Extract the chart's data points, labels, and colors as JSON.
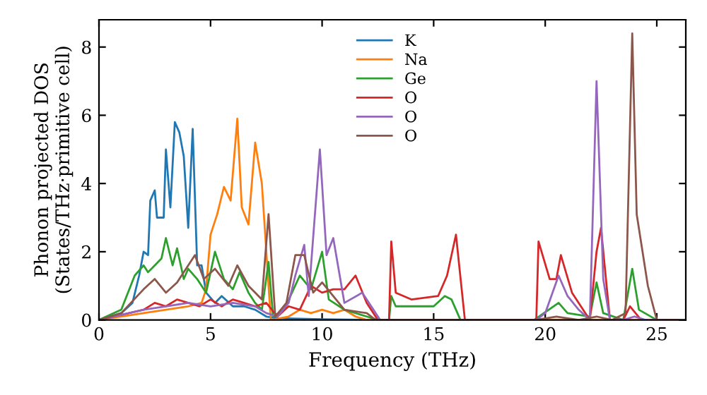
{
  "chart_data": {
    "type": "line",
    "xlabel": "Frequency (THz)",
    "ylabel": "Phonon projected DOS\n(States/THz·primitive cell)",
    "xlim": [
      0,
      26.3
    ],
    "ylim": [
      0,
      8.8
    ],
    "xticks": [
      0,
      5,
      10,
      15,
      20,
      25
    ],
    "yticks": [
      0,
      2,
      4,
      6,
      8
    ],
    "legend": "top",
    "grid": false,
    "marker": "none",
    "line_style": "solid",
    "series": [
      {
        "name": "K",
        "color": "#1f77b4",
        "x": [
          0,
          1,
          1.5,
          1.8,
          2.0,
          2.2,
          2.3,
          2.5,
          2.6,
          2.9,
          3.0,
          3.2,
          3.4,
          3.6,
          3.8,
          4.0,
          4.2,
          4.4,
          4.6,
          4.8,
          5.2,
          5.5,
          6.0,
          6.5,
          7.0,
          7.5,
          8,
          10,
          12,
          26
        ],
        "values": [
          0,
          0.2,
          0.5,
          1.3,
          2.0,
          1.9,
          3.5,
          3.8,
          3.0,
          3.0,
          5.0,
          3.3,
          5.8,
          5.5,
          4.8,
          2.7,
          5.6,
          1.6,
          1.6,
          0.8,
          0.5,
          0.7,
          0.4,
          0.4,
          0.3,
          0.1,
          0.05,
          0.02,
          0,
          0
        ]
      },
      {
        "name": "Na",
        "color": "#ff7f0e",
        "x": [
          0,
          2,
          4,
          4.6,
          4.8,
          5.0,
          5.3,
          5.6,
          5.9,
          6.2,
          6.4,
          6.7,
          7.0,
          7.3,
          7.5,
          7.7,
          8.5,
          9,
          9.5,
          10,
          10.5,
          11,
          11.5,
          12,
          26
        ],
        "values": [
          0,
          0.2,
          0.4,
          0.5,
          0.9,
          2.5,
          3.1,
          3.9,
          3.5,
          5.9,
          3.3,
          2.8,
          5.2,
          4.0,
          2.0,
          0,
          0.1,
          0.3,
          0.2,
          0.3,
          0.2,
          0.3,
          0.1,
          0,
          0
        ]
      },
      {
        "name": "Ge",
        "color": "#2ca02c",
        "x": [
          0,
          1,
          1.6,
          2.0,
          2.2,
          2.5,
          2.8,
          3.0,
          3.3,
          3.5,
          3.8,
          4.0,
          4.4,
          4.8,
          5.2,
          5.6,
          6.0,
          6.3,
          6.7,
          7.0,
          7.3,
          7.6,
          7.8,
          8.3,
          9.0,
          9.5,
          10.0,
          10.3,
          11,
          12,
          12.5,
          13.0,
          13.1,
          13.3,
          15.0,
          15.5,
          15.8,
          16.2,
          19.5,
          20.6,
          21.0,
          22.0,
          22.3,
          22.6,
          23.5,
          23.9,
          24.2,
          25,
          26
        ],
        "values": [
          0,
          0.3,
          1.3,
          1.6,
          1.4,
          1.6,
          1.8,
          2.4,
          1.6,
          2.1,
          1.2,
          1.5,
          1.2,
          0.8,
          2.0,
          1.2,
          0.9,
          1.4,
          0.8,
          0.5,
          0.3,
          1.7,
          0.1,
          0.3,
          1.3,
          0.9,
          2.0,
          0.6,
          0.3,
          0.1,
          0,
          0,
          0.7,
          0.4,
          0.4,
          0.7,
          0.6,
          0,
          0,
          0.5,
          0.2,
          0.1,
          1.1,
          0.2,
          0,
          1.5,
          0.3,
          0,
          0
        ]
      },
      {
        "name": "O",
        "color": "#d62728",
        "x": [
          0,
          2,
          2.5,
          3,
          3.5,
          4,
          4.5,
          5,
          5.5,
          6,
          6.5,
          7,
          7.5,
          8,
          8.5,
          9,
          9.5,
          10,
          10.5,
          11,
          11.5,
          12,
          12.5,
          13.0,
          13.1,
          13.3,
          14,
          15.2,
          15.6,
          16.0,
          16.4,
          19.6,
          19.7,
          20.2,
          20.5,
          20.7,
          21.2,
          21.8,
          22.0,
          22.3,
          22.5,
          22.9,
          23.5,
          23.8,
          24.3,
          26
        ],
        "values": [
          0,
          0.3,
          0.5,
          0.4,
          0.6,
          0.5,
          0.4,
          0.6,
          0.4,
          0.6,
          0.5,
          0.4,
          0.5,
          0.1,
          0.4,
          0.3,
          1.0,
          0.8,
          0.9,
          0.9,
          1.3,
          0.5,
          0,
          0,
          2.3,
          0.8,
          0.6,
          0.7,
          1.3,
          2.5,
          0,
          0,
          2.3,
          1.2,
          1.2,
          1.9,
          0.8,
          0.2,
          0,
          2.0,
          2.7,
          0,
          0,
          0.4,
          0,
          0
        ]
      },
      {
        "name": "O",
        "color": "#9467bd",
        "x": [
          0,
          2,
          3,
          4,
          5,
          6,
          7,
          7.5,
          8,
          8.5,
          8.8,
          9.2,
          9.4,
          9.9,
          10.2,
          10.5,
          11,
          11.8,
          12.3,
          12.6,
          19.6,
          20.0,
          20.6,
          21.0,
          21.5,
          22.0,
          22.3,
          22.6,
          22.9,
          23.5,
          24,
          24.5,
          26
        ],
        "values": [
          0,
          0.3,
          0.4,
          0.5,
          0.4,
          0.5,
          0.4,
          0.2,
          0.1,
          0.5,
          1.3,
          2.2,
          0.7,
          5.0,
          1.9,
          2.4,
          0.5,
          0.8,
          0.3,
          0,
          0,
          0.2,
          1.3,
          0.7,
          0.3,
          0,
          7.0,
          1.2,
          0,
          0,
          0.1,
          0,
          0
        ]
      },
      {
        "name": "O",
        "color": "#8c564b",
        "x": [
          0,
          1,
          2,
          2.5,
          3,
          3.5,
          4.3,
          4.7,
          5.2,
          5.8,
          6.2,
          6.7,
          7.3,
          7.6,
          7.9,
          8.4,
          8.8,
          9.2,
          9.6,
          10,
          11,
          12,
          12.4,
          19.6,
          20.5,
          21.5,
          22.3,
          23.0,
          23.6,
          23.9,
          24.1,
          24.6,
          25,
          26
        ],
        "values": [
          0,
          0.2,
          0.9,
          1.2,
          0.8,
          1.1,
          1.9,
          1.2,
          1.5,
          1.0,
          1.6,
          1.0,
          0.6,
          3.1,
          0.1,
          0.5,
          1.9,
          1.9,
          0.8,
          1.1,
          0.3,
          0.2,
          0,
          0,
          0.1,
          0,
          0.1,
          0,
          0.2,
          8.4,
          3.1,
          1.0,
          0,
          0
        ]
      }
    ]
  }
}
